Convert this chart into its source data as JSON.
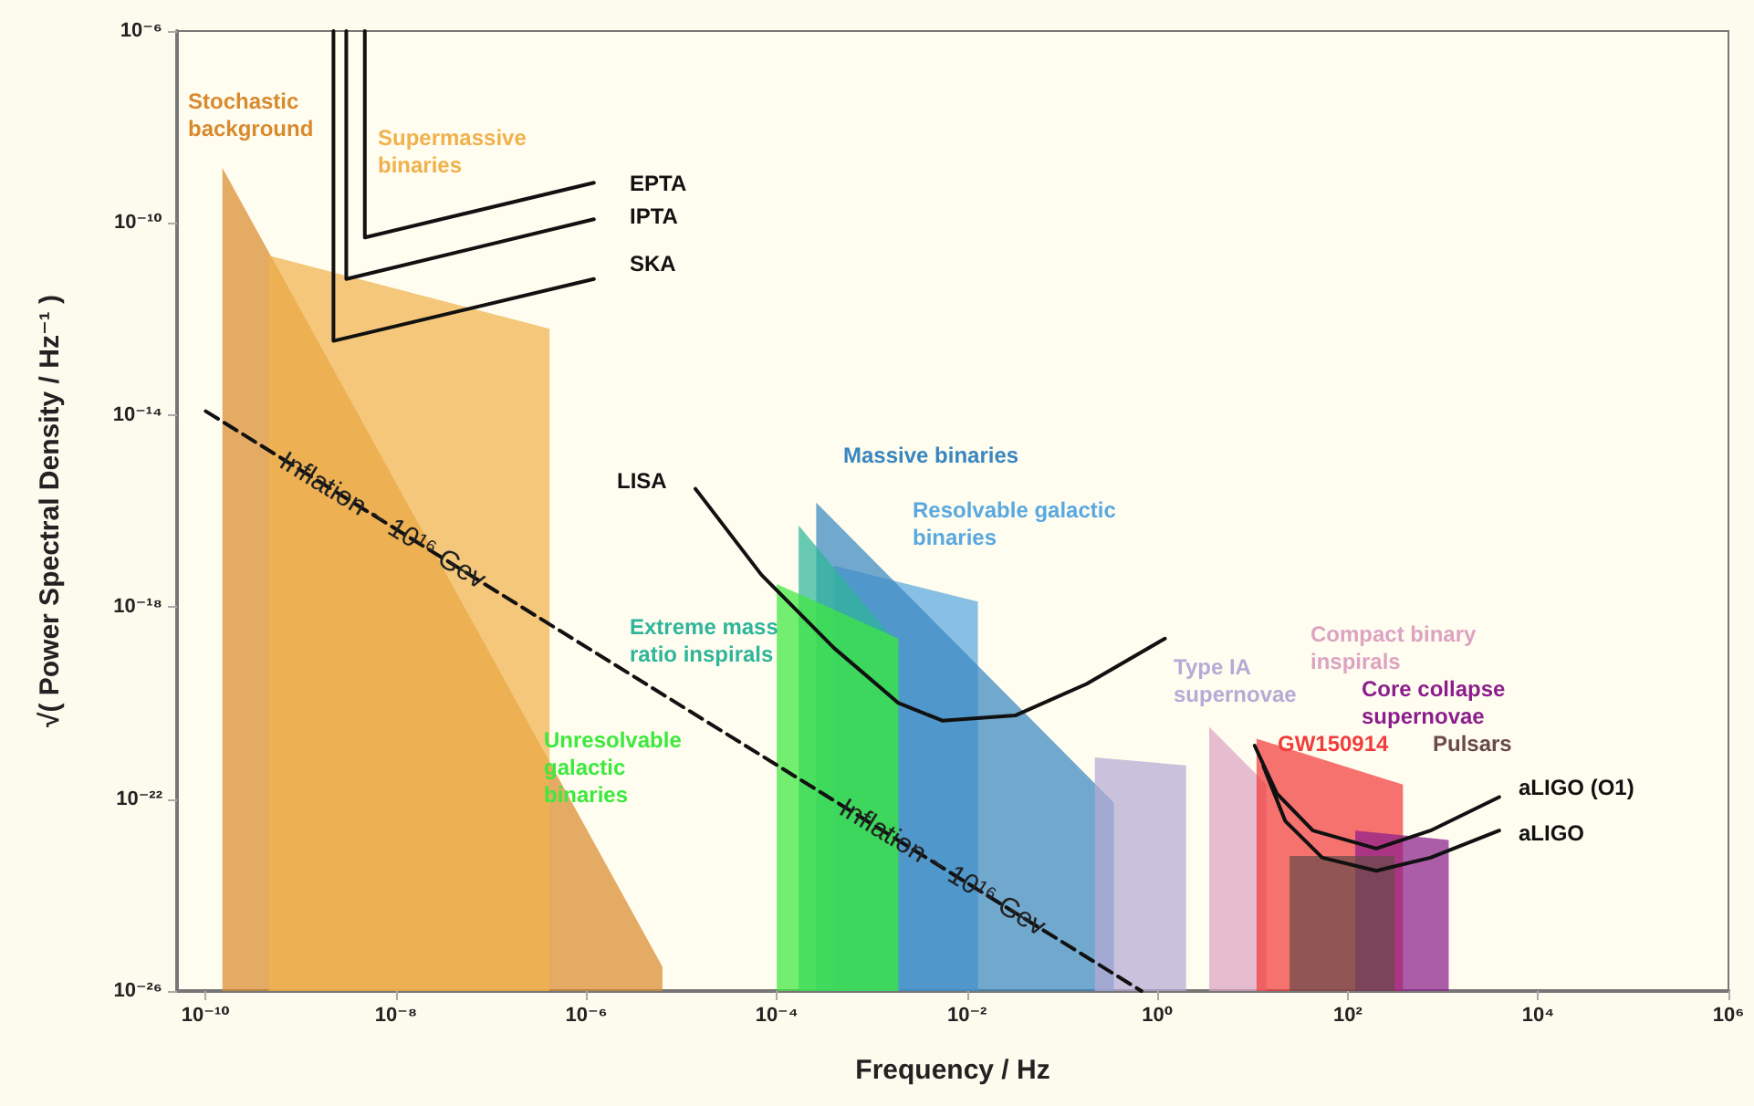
{
  "chart_data": {
    "type": "line",
    "xlabel": "Frequency / Hz",
    "ylabel": "√( Power Spectral Density / Hz⁻¹ )",
    "log": "xy",
    "grid": false,
    "legend": false,
    "marker": "none",
    "xlim": [
      5e-11,
      1000000.0
    ],
    "ylim": [
      1e-26,
      1e-06
    ],
    "xticks": [
      {
        "value": 1e-10,
        "label": "10⁻¹⁰"
      },
      {
        "value": 1e-08,
        "label": "10⁻⁸"
      },
      {
        "value": 1e-06,
        "label": "10⁻⁶"
      },
      {
        "value": 0.0001,
        "label": "10⁻⁴"
      },
      {
        "value": 0.01,
        "label": "10⁻²"
      },
      {
        "value": 1,
        "label": "10⁰"
      },
      {
        "value": 100,
        "label": "10²"
      },
      {
        "value": 10000,
        "label": "10⁴"
      },
      {
        "value": 1000000,
        "label": "10⁶"
      }
    ],
    "yticks": [
      {
        "value": 1e-26,
        "label": "10⁻²⁶"
      },
      {
        "value": 1e-22,
        "label": "10⁻²²"
      },
      {
        "value": 1e-18,
        "label": "10⁻¹⁸"
      },
      {
        "value": 1e-14,
        "label": "10⁻¹⁴"
      },
      {
        "value": 1e-10,
        "label": "10⁻¹⁰"
      },
      {
        "value": 1e-06,
        "label": "10⁻⁶"
      }
    ],
    "series": [
      {
        "name": "Stochastic background",
        "type": "area",
        "color": "#d98a2e",
        "x": [
          1.5e-10,
          6.3e-06
        ],
        "values": [
          1.4e-09,
          3.2e-26
        ]
      },
      {
        "name": "Supermassive binaries",
        "type": "area",
        "color": "#f0b24c",
        "x": [
          4.6e-10,
          4.1e-07
        ],
        "values": [
          2.1e-11,
          6.3e-13
        ]
      },
      {
        "name": "Resolvable galactic binaries",
        "type": "area",
        "color": "#5aa8e0",
        "x": [
          0.0004,
          0.013
        ],
        "values": [
          7.2e-18,
          1.3e-18
        ]
      },
      {
        "name": "Massive binaries",
        "type": "area",
        "color": "#3a86c0",
        "x": [
          0.00026,
          0.35
        ],
        "values": [
          1.5e-16,
          8.3e-23
        ]
      },
      {
        "name": "Extreme mass ratio inspirals",
        "type": "area",
        "color": "#2fb59a",
        "x": [
          0.00017,
          0.0019
        ],
        "values": [
          5e-17,
          1.6e-19
        ]
      },
      {
        "name": "Unresolvable galactic binaries",
        "type": "area",
        "color": "#3ee83e",
        "x": [
          0.0001,
          0.0019
        ],
        "values": [
          3e-18,
          2.2e-19
        ]
      },
      {
        "name": "Type IA supernovae",
        "type": "area",
        "color": "#b6aad6",
        "x": [
          0.22,
          2.0
        ],
        "values": [
          7.4e-22,
          5e-22
        ]
      },
      {
        "name": "Compact binary inspirals",
        "type": "area",
        "color": "#dca4c2",
        "x": [
          3.5,
          14
        ],
        "values": [
          3.2e-21,
          2e-22
        ]
      },
      {
        "name": "GW150914",
        "type": "area",
        "color": "#f23c3c",
        "x": [
          11,
          380
        ],
        "values": [
          1.8e-21,
          2e-22
        ]
      },
      {
        "name": "Core collapse supernovae",
        "type": "area",
        "color": "#8c1e8c",
        "x": [
          120,
          1150
        ],
        "values": [
          2.2e-23,
          1.4e-23
        ]
      },
      {
        "name": "Pulsars",
        "type": "area",
        "color": "#6a4a4a",
        "x": [
          24.5,
          310
        ],
        "values": [
          6.5e-24,
          6.5e-24
        ]
      },
      {
        "name": "EPTA",
        "type": "line",
        "color": "#111111",
        "x": [
          4.7e-09,
          4.7e-09,
          1.2e-06
        ],
        "values": [
          1e-06,
          5e-11,
          6.9e-10
        ]
      },
      {
        "name": "IPTA",
        "type": "line",
        "color": "#111111",
        "x": [
          3e-09,
          3e-09,
          1.2e-06
        ],
        "values": [
          1e-06,
          6.8e-12,
          1.2e-10
        ]
      },
      {
        "name": "SKA",
        "type": "line",
        "color": "#111111",
        "x": [
          2.2e-09,
          2.2e-09,
          1.2e-06
        ],
        "values": [
          1e-06,
          3.5e-13,
          6.8e-12
        ]
      },
      {
        "name": "LISA",
        "type": "line",
        "color": "#111111",
        "x": [
          1.4e-05,
          6.9e-05,
          0.0004,
          0.0019,
          0.0055,
          0.032,
          0.18,
          1.2
        ],
        "values": [
          2.9e-16,
          4.7e-18,
          1.4e-19,
          1e-20,
          4.3e-21,
          5.5e-21,
          2.5e-20,
          2.2e-19
        ]
      },
      {
        "name": "aLIGO (O1)",
        "type": "line",
        "color": "#111111",
        "x": [
          10.5,
          18,
          43,
          200,
          740,
          3900
        ],
        "values": [
          1.3e-21,
          1.3e-22,
          2.2e-23,
          9.3e-24,
          2.2e-23,
          1.1e-22
        ]
      },
      {
        "name": "aLIGO",
        "type": "line",
        "color": "#111111",
        "x": [
          13,
          22,
          54,
          200,
          740,
          3900
        ],
        "values": [
          4.8e-22,
          3.5e-23,
          6e-24,
          3.2e-24,
          6e-24,
          2.2e-23
        ]
      },
      {
        "type": "line",
        "color": "#111111",
        "line_style": "dashed",
        "x": [
          1e-10,
          0.68
        ],
        "values": [
          1.2e-14,
          1e-26
        ]
      }
    ],
    "annotations": [
      {
        "text": "Inflation ~ 10¹⁶ Gev",
        "x": 7.2e-09,
        "y": 6.3e-17
      },
      {
        "text": "Inflation ~ 10¹⁶ Gev",
        "x": 0.0055,
        "y": 3.7e-24
      }
    ]
  }
}
